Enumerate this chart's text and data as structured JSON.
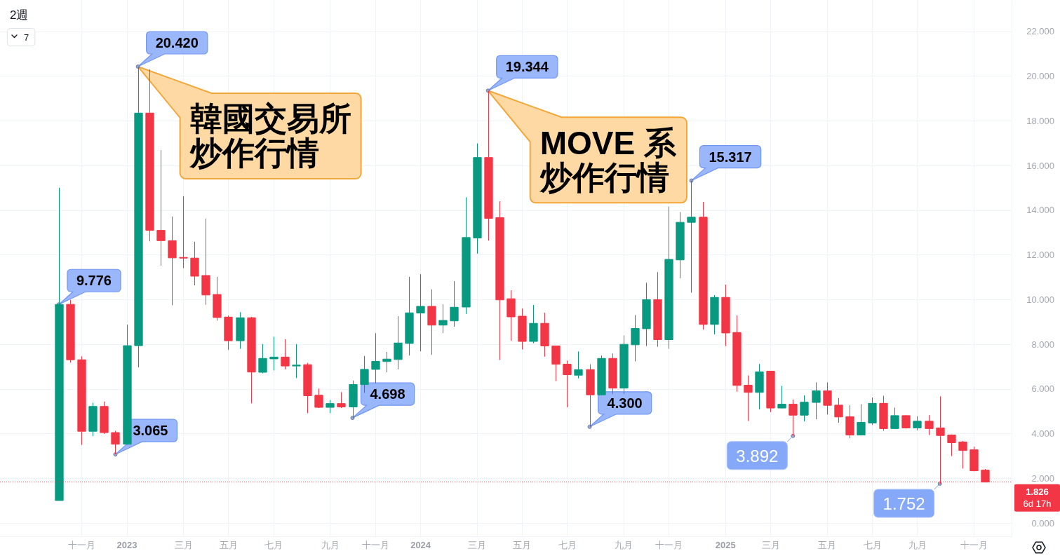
{
  "chart_data": {
    "type": "candlestick",
    "title": "2週",
    "x": [
      "2022-10-10",
      "2022-10-24",
      "2022-11-07",
      "2022-11-21",
      "2022-12-05",
      "2022-12-19",
      "2023-01-02",
      "2023-01-16",
      "2023-01-30",
      "2023-02-13",
      "2023-02-27",
      "2023-03-13",
      "2023-03-27",
      "2023-04-10",
      "2023-04-24",
      "2023-05-08",
      "2023-05-22",
      "2023-06-05",
      "2023-06-19",
      "2023-07-03",
      "2023-07-17",
      "2023-07-31",
      "2023-08-14",
      "2023-08-28",
      "2023-09-11",
      "2023-09-25",
      "2023-10-09",
      "2023-10-23",
      "2023-11-06",
      "2023-11-20",
      "2023-12-04",
      "2023-12-18",
      "2024-01-01",
      "2024-01-15",
      "2024-01-29",
      "2024-02-12",
      "2024-02-26",
      "2024-03-11",
      "2024-03-25",
      "2024-04-08",
      "2024-04-22",
      "2024-05-06",
      "2024-05-20",
      "2024-06-03",
      "2024-06-17",
      "2024-07-01",
      "2024-07-15",
      "2024-07-29",
      "2024-08-12",
      "2024-08-26",
      "2024-09-09",
      "2024-09-23",
      "2024-10-07",
      "2024-10-21",
      "2024-11-04",
      "2024-11-18",
      "2024-12-02",
      "2024-12-16",
      "2024-12-30",
      "2025-01-13",
      "2025-01-27",
      "2025-02-10",
      "2025-02-24",
      "2025-03-10",
      "2025-03-24",
      "2025-04-07",
      "2025-04-21",
      "2025-05-05",
      "2025-05-19",
      "2025-06-02",
      "2025-06-16",
      "2025-06-30",
      "2025-07-14",
      "2025-07-28",
      "2025-08-11",
      "2025-08-25",
      "2025-09-08",
      "2025-09-22",
      "2025-10-06",
      "2025-10-20",
      "2025-11-03",
      "2025-11-17",
      "2025-12-01"
    ],
    "ohlc": [
      [
        1.0,
        15.0,
        1.0,
        9.776
      ],
      [
        9.78,
        9.98,
        7.17,
        7.3
      ],
      [
        7.3,
        7.45,
        3.49,
        4.1
      ],
      [
        4.1,
        5.38,
        3.88,
        5.21
      ],
      [
        5.21,
        5.43,
        3.98,
        4.04
      ],
      [
        4.04,
        4.12,
        3.065,
        3.52
      ],
      [
        3.52,
        8.87,
        3.5,
        7.93
      ],
      [
        7.93,
        20.42,
        6.96,
        18.34
      ],
      [
        18.34,
        20.3,
        12.6,
        13.09
      ],
      [
        13.09,
        16.68,
        11.51,
        12.63
      ],
      [
        12.63,
        13.71,
        9.74,
        11.86
      ],
      [
        11.88,
        14.62,
        11.4,
        11.86
      ],
      [
        11.85,
        12.58,
        10.63,
        11.04
      ],
      [
        11.07,
        13.62,
        9.76,
        10.2
      ],
      [
        10.22,
        11.01,
        9.05,
        9.19
      ],
      [
        9.21,
        9.28,
        7.74,
        8.15
      ],
      [
        8.15,
        9.43,
        7.79,
        9.18
      ],
      [
        9.18,
        9.22,
        5.35,
        6.75
      ],
      [
        6.74,
        8.0,
        6.69,
        7.36
      ],
      [
        7.34,
        8.33,
        6.82,
        7.42
      ],
      [
        7.42,
        8.22,
        6.87,
        7.02
      ],
      [
        7.02,
        8.0,
        6.48,
        7.06
      ],
      [
        7.08,
        7.16,
        4.91,
        5.69
      ],
      [
        5.71,
        6.01,
        5.14,
        5.17
      ],
      [
        5.17,
        5.5,
        4.91,
        5.34
      ],
      [
        5.34,
        5.85,
        5.14,
        5.19
      ],
      [
        5.19,
        6.37,
        4.698,
        6.19
      ],
      [
        6.19,
        7.47,
        5.82,
        6.87
      ],
      [
        6.87,
        8.49,
        6.24,
        7.23
      ],
      [
        7.22,
        7.65,
        6.74,
        7.33
      ],
      [
        7.31,
        9.25,
        6.87,
        8.05
      ],
      [
        8.03,
        11.01,
        7.49,
        9.4
      ],
      [
        9.39,
        11.13,
        7.68,
        9.69
      ],
      [
        9.69,
        10.45,
        7.52,
        8.85
      ],
      [
        8.85,
        9.78,
        8.49,
        9.06
      ],
      [
        9.04,
        10.82,
        8.78,
        9.65
      ],
      [
        9.66,
        14.57,
        9.35,
        12.77
      ],
      [
        12.75,
        16.98,
        12.05,
        16.35
      ],
      [
        16.35,
        19.344,
        12.63,
        13.63
      ],
      [
        13.66,
        14.39,
        7.29,
        9.98
      ],
      [
        10.03,
        10.41,
        8.15,
        9.22
      ],
      [
        9.25,
        9.59,
        7.76,
        8.12
      ],
      [
        8.12,
        9.75,
        8.04,
        8.93
      ],
      [
        8.93,
        9.4,
        7.44,
        7.92
      ],
      [
        7.92,
        7.93,
        6.34,
        7.1
      ],
      [
        7.1,
        7.26,
        5.17,
        6.63
      ],
      [
        6.61,
        7.67,
        6.47,
        6.86
      ],
      [
        6.86,
        7.1,
        4.3,
        5.73
      ],
      [
        5.73,
        7.49,
        5.7,
        7.36
      ],
      [
        7.36,
        7.58,
        5.76,
        6.03
      ],
      [
        6.03,
        8.39,
        5.76,
        7.99
      ],
      [
        7.97,
        9.3,
        7.23,
        8.7
      ],
      [
        8.69,
        10.75,
        7.91,
        9.99
      ],
      [
        9.99,
        11.22,
        7.88,
        8.2
      ],
      [
        8.2,
        14.15,
        7.79,
        11.79
      ],
      [
        11.77,
        13.91,
        10.95,
        13.45
      ],
      [
        13.45,
        15.317,
        10.3,
        13.68
      ],
      [
        13.68,
        14.36,
        8.65,
        8.88
      ],
      [
        8.88,
        10.19,
        8.44,
        10.09
      ],
      [
        10.09,
        10.66,
        7.91,
        8.5
      ],
      [
        8.52,
        9.28,
        5.87,
        6.15
      ],
      [
        6.16,
        6.6,
        4.56,
        5.84
      ],
      [
        5.84,
        7.11,
        5.08,
        6.76
      ],
      [
        6.79,
        6.8,
        4.96,
        5.14
      ],
      [
        5.14,
        6.13,
        5.12,
        5.31
      ],
      [
        5.31,
        5.52,
        3.892,
        4.82
      ],
      [
        4.82,
        5.71,
        4.54,
        5.4
      ],
      [
        5.39,
        6.29,
        4.64,
        5.91
      ],
      [
        5.91,
        6.29,
        4.85,
        5.26
      ],
      [
        5.27,
        5.59,
        4.48,
        4.74
      ],
      [
        4.75,
        5.27,
        3.79,
        3.93
      ],
      [
        3.93,
        5.31,
        3.91,
        4.5
      ],
      [
        4.47,
        5.61,
        4.38,
        5.35
      ],
      [
        5.35,
        5.69,
        4.12,
        4.22
      ],
      [
        4.22,
        5.16,
        4.2,
        4.8
      ],
      [
        4.8,
        4.82,
        4.22,
        4.25
      ],
      [
        4.25,
        4.77,
        4.14,
        4.55
      ],
      [
        4.55,
        4.82,
        3.93,
        4.22
      ],
      [
        4.25,
        5.66,
        1.752,
        3.91
      ],
      [
        3.93,
        3.96,
        2.99,
        3.59
      ],
      [
        3.62,
        3.67,
        2.43,
        3.24
      ],
      [
        3.27,
        3.41,
        2.31,
        2.33
      ],
      [
        2.36,
        2.41,
        1.826,
        1.826
      ]
    ],
    "colors": [
      "#089981",
      "#f23645",
      "#f23645",
      "#089981",
      "#f23645",
      "#f23645",
      "#089981",
      "#089981",
      "#f23645",
      "#f23645",
      "#f23645",
      "#f23645",
      "#f23645",
      "#f23645",
      "#f23645",
      "#f23645",
      "#089981",
      "#f23645",
      "#089981",
      "#089981",
      "#f23645",
      "#089981",
      "#f23645",
      "#f23645",
      "#089981",
      "#f23645",
      "#089981",
      "#089981",
      "#089981",
      "#089981",
      "#089981",
      "#089981",
      "#089981",
      "#f23645",
      "#089981",
      "#089981",
      "#089981",
      "#089981",
      "#f23645",
      "#f23645",
      "#f23645",
      "#f23645",
      "#089981",
      "#f23645",
      "#f23645",
      "#f23645",
      "#089981",
      "#f23645",
      "#089981",
      "#f23645",
      "#089981",
      "#089981",
      "#089981",
      "#f23645",
      "#089981",
      "#089981",
      "#089981",
      "#f23645",
      "#089981",
      "#f23645",
      "#f23645",
      "#f23645",
      "#089981",
      "#f23645",
      "#089981",
      "#f23645",
      "#089981",
      "#089981",
      "#f23645",
      "#f23645",
      "#f23645",
      "#089981",
      "#089981",
      "#f23645",
      "#089981",
      "#f23645",
      "#089981",
      "#f23645",
      "#f23645",
      "#f23645",
      "#f23645",
      "#f23645",
      "#f23645"
    ],
    "xlim": [
      "2022-07-29",
      "2026-01-03"
    ],
    "xticks": [
      {
        "value": "2022-11-07",
        "label": "十一月"
      },
      {
        "value": "2023-01-02",
        "label": "2023"
      },
      {
        "value": "2023-03-13",
        "label": "三月"
      },
      {
        "value": "2023-05-08",
        "label": "五月"
      },
      {
        "value": "2023-07-03",
        "label": "七月"
      },
      {
        "value": "2023-09-11",
        "label": "九月"
      },
      {
        "value": "2023-11-06",
        "label": "十一月"
      },
      {
        "value": "2024-01-01",
        "label": "2024"
      },
      {
        "value": "2024-03-11",
        "label": "三月"
      },
      {
        "value": "2024-05-06",
        "label": "五月"
      },
      {
        "value": "2024-07-01",
        "label": "七月"
      },
      {
        "value": "2024-09-09",
        "label": "九月"
      },
      {
        "value": "2024-11-04",
        "label": "十一月"
      },
      {
        "value": "2025-01-13",
        "label": "2025"
      },
      {
        "value": "2025-03-10",
        "label": "三月"
      },
      {
        "value": "2025-05-19",
        "label": "五月"
      },
      {
        "value": "2025-07-14",
        "label": "七月"
      },
      {
        "value": "2025-09-08",
        "label": "九月"
      },
      {
        "value": "2025-11-17",
        "label": "十一月"
      }
    ],
    "ylim": [
      -0.6,
      23.4
    ],
    "yticks": [
      {
        "value": 0,
        "label": "0.000"
      },
      {
        "value": 2,
        "label": "2.000"
      },
      {
        "value": 4,
        "label": "4.000"
      },
      {
        "value": 6,
        "label": "6.000"
      },
      {
        "value": 8,
        "label": "8.000"
      },
      {
        "value": 10,
        "label": "10.000"
      },
      {
        "value": 12,
        "label": "12.000"
      },
      {
        "value": 14,
        "label": "14.000"
      },
      {
        "value": 16,
        "label": "16.000"
      },
      {
        "value": 18,
        "label": "18.000"
      },
      {
        "value": 20,
        "label": "20.000"
      },
      {
        "value": 22,
        "label": "22.000"
      }
    ],
    "grid": true,
    "ref_lines": [
      {
        "axis": "y",
        "value": 1.826,
        "label": "1.826\n6d 17h",
        "color": "#f23645",
        "line_style": "dotted"
      }
    ],
    "annotations": [
      "7",
      {
        "text": "韓國交易所炒作行情",
        "x": "2023-01-16",
        "y": 20.42
      },
      {
        "text": "MOVE 系炒作行情",
        "x": "2024-03-25",
        "y": 19.344
      },
      {
        "text": "9.776",
        "x": "2022-10-10",
        "y": 9.776
      },
      {
        "text": "20.420",
        "x": "2023-01-16",
        "y": 20.42
      },
      {
        "text": "3.065",
        "x": "2022-12-19",
        "y": 3.065
      },
      {
        "text": "4.698",
        "x": "2023-10-09",
        "y": 4.698
      },
      {
        "text": "19.344",
        "x": "2024-03-25",
        "y": 19.344
      },
      {
        "text": "15.317",
        "x": "2024-12-02",
        "y": 15.317
      },
      {
        "text": "4.300",
        "x": "2024-07-29",
        "y": 4.3
      },
      {
        "text": "3.892",
        "x": "2025-04-07",
        "y": 3.892
      },
      {
        "text": "1.752",
        "x": "2025-10-06",
        "y": 1.752
      }
    ]
  }
}
